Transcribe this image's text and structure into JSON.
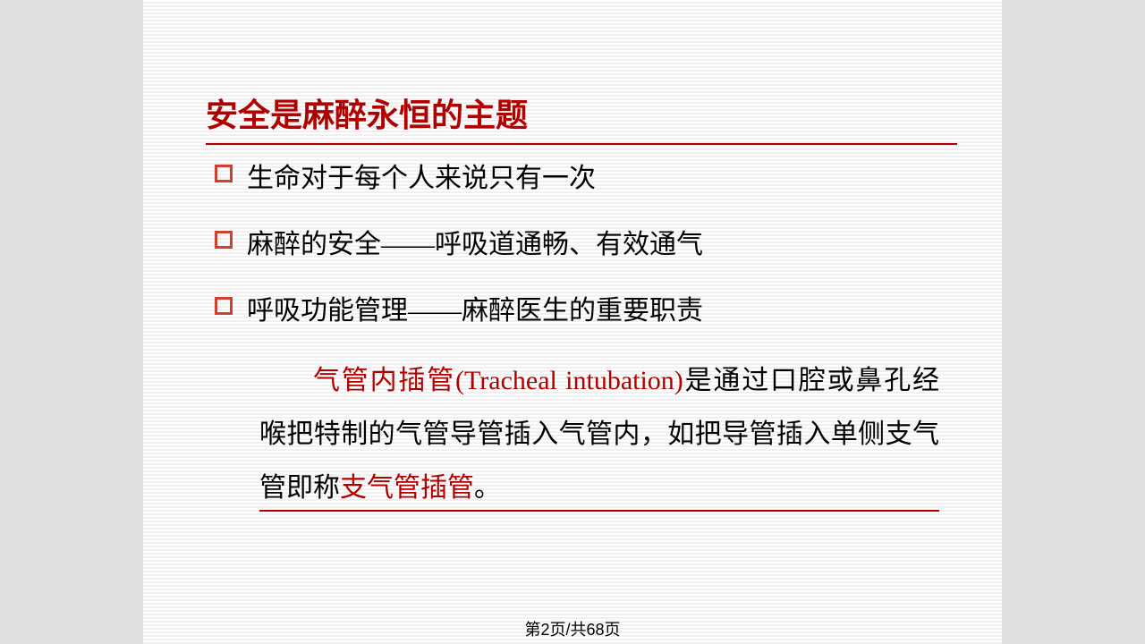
{
  "slide": {
    "title": "安全是麻醉永恒的主题",
    "bullets": [
      "生命对于每个人来说只有一次",
      "麻醉的安全——呼吸道通畅、有效通气",
      "呼吸功能管理——麻醉医生的重要职责"
    ],
    "paragraph": {
      "highlight1": "气管内插管(Tracheal intubation)",
      "text1": "是通过口腔或鼻孔经喉把特制的气管导管插入气管内，如把导管插入单侧支气管即称",
      "highlight2": "支气管插管",
      "text2": "。"
    }
  },
  "pager": {
    "text": "第2页/共68页"
  },
  "colors": {
    "accent": "#b00000",
    "bullet_marker": "#d04030",
    "text": "#000000",
    "page_bg": "#e0e0e0",
    "slide_bg": "#ffffff"
  },
  "typography": {
    "title_fontsize": 36,
    "body_fontsize": 30,
    "pager_fontsize": 18,
    "font_family": "SimSun"
  }
}
